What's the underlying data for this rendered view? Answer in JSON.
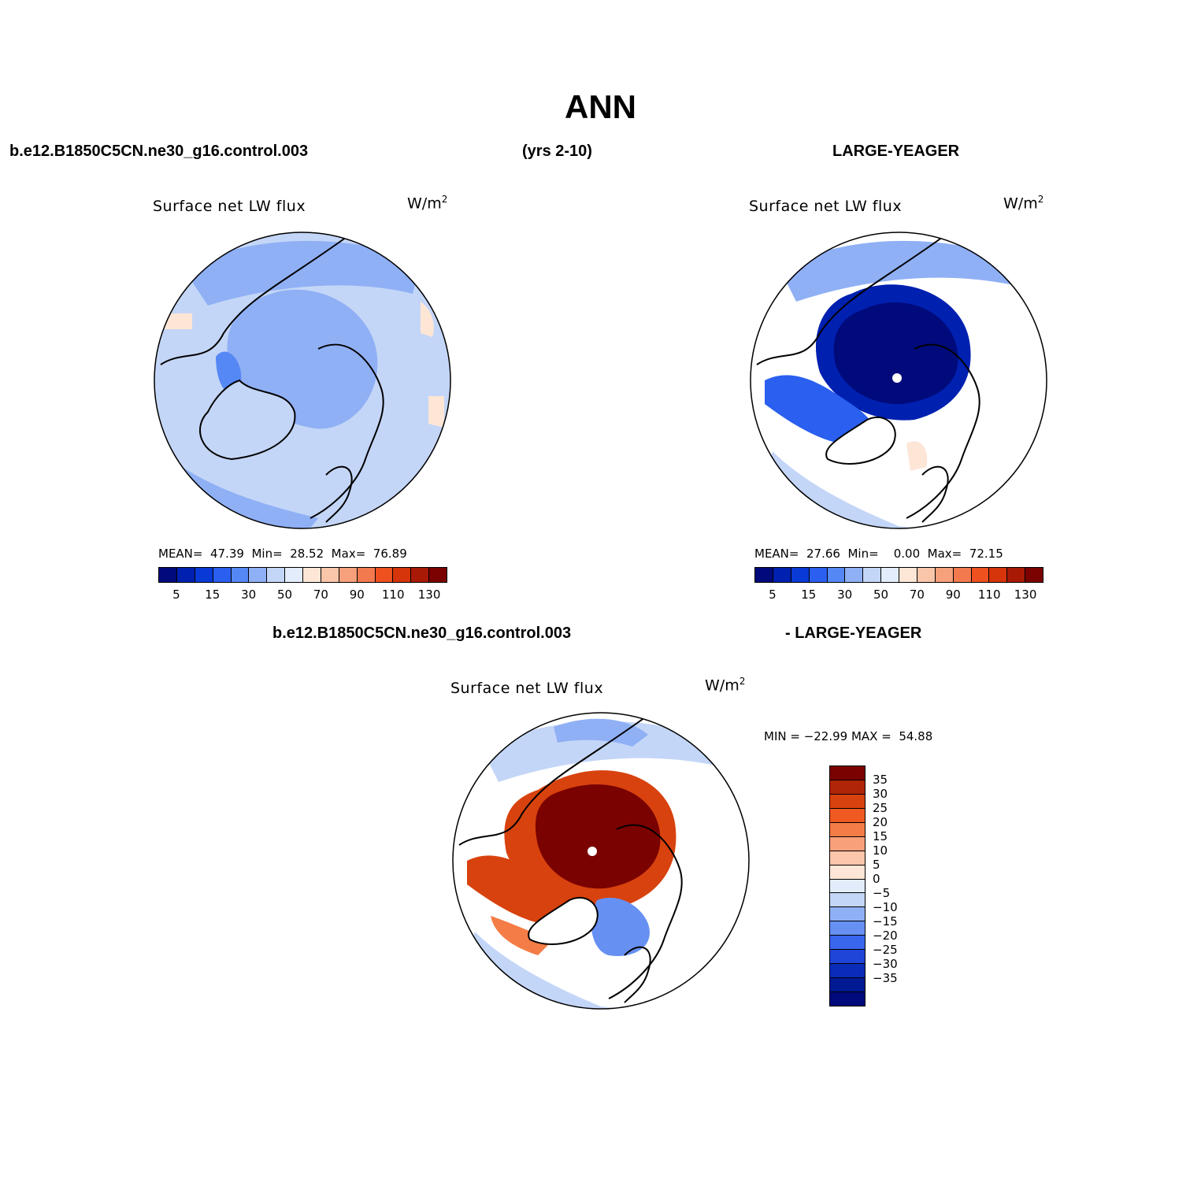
{
  "title": "ANN",
  "header": {
    "case": "b.e12.B1850C5CN.ne30_g16.control.003",
    "years": "(yrs 2-10)",
    "obs": "LARGE-YEAGER"
  },
  "diff_header": {
    "case": "b.e12.B1850C5CN.ne30_g16.control.003",
    "obs": "- LARGE-YEAGER"
  },
  "panels": [
    {
      "variable": "Surface net LW flux",
      "units": "W/m",
      "units_exp": "2",
      "stats_text": "MEAN=  47.39  Min=  28.52  Max=  76.89",
      "mean": 47.39,
      "min": 28.52,
      "max": 76.89
    },
    {
      "variable": "Surface net LW flux",
      "units": "W/m",
      "units_exp": "2",
      "stats_text": "MEAN=  27.66  Min=    0.00  Max=  72.15",
      "mean": 27.66,
      "min": 0.0,
      "max": 72.15
    },
    {
      "variable": "Surface net LW flux",
      "units": "W/m",
      "units_exp": "2",
      "stats_text": "MIN = −22.99 MAX =  54.88",
      "min": -22.99,
      "max": 54.88
    }
  ],
  "colorbar_abs": {
    "colors": [
      "#000a7a",
      "#0020b0",
      "#0a3ad6",
      "#2a5ff0",
      "#5588f5",
      "#90b0f5",
      "#c4d6f7",
      "#e2ecfb",
      "#fde6d6",
      "#f9c6aa",
      "#f6a07c",
      "#f27a4e",
      "#ee5020",
      "#d6340a",
      "#a81a06",
      "#7a0200"
    ],
    "tick_labels": [
      "5",
      "15",
      "30",
      "50",
      "70",
      "90",
      "110",
      "130"
    ]
  },
  "colorbar_diff": {
    "colors": [
      "#7a0200",
      "#b02508",
      "#d8420e",
      "#ee5a22",
      "#f47c46",
      "#f8a07a",
      "#fbc6aa",
      "#fde6d6",
      "#e2ecfb",
      "#c4d6f7",
      "#90b0f5",
      "#6690f2",
      "#3a66ee",
      "#1f44d8",
      "#0a2cb8",
      "#001a94",
      "#000a7a"
    ],
    "tick_labels": [
      "35",
      "30",
      "25",
      "20",
      "15",
      "10",
      "5",
      "0",
      "−5",
      "−10",
      "−15",
      "−20",
      "−25",
      "−30",
      "−35"
    ]
  },
  "palette": {
    "ocean_light": "#c4d6f7",
    "ocean_mid": "#90b0f5",
    "ocean_deep": "#5588f5",
    "ice_dark": "#0020b0",
    "ice_deep": "#000a7a",
    "warm_light": "#fde6d6",
    "diff_max": "#7a0200",
    "diff_red": "#d8420e",
    "diff_orange": "#f47c46",
    "diff_blue": "#6690f2",
    "land": "#ffffff"
  }
}
